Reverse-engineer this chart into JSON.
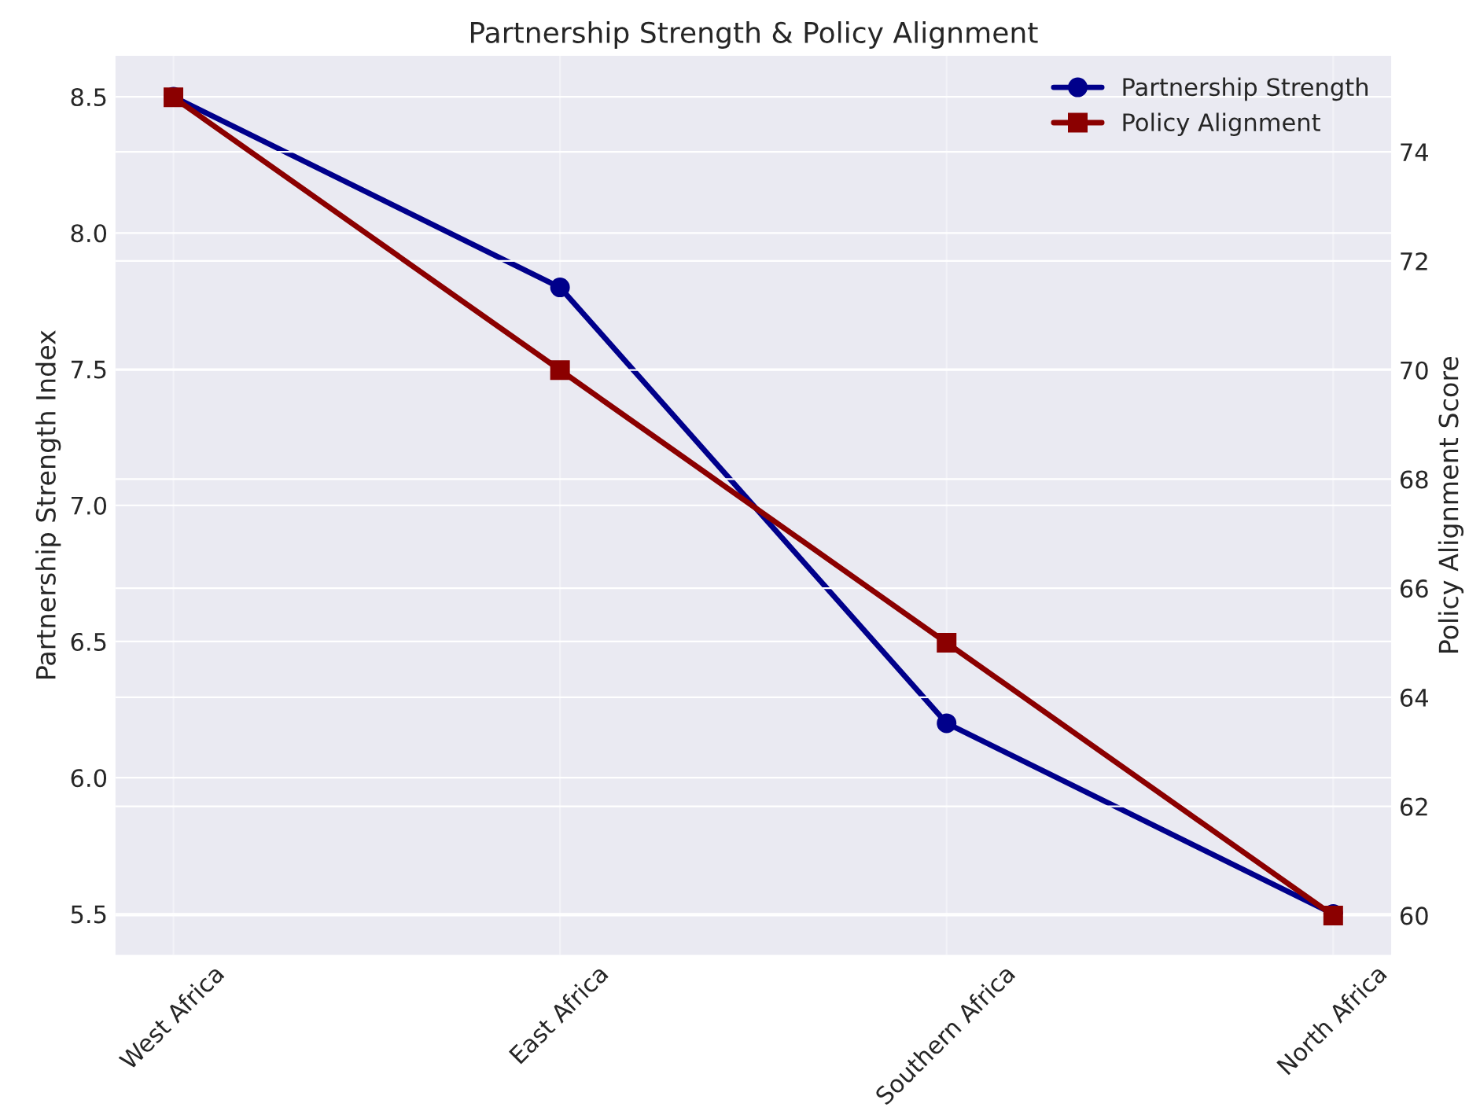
{
  "chart_data": {
    "type": "line",
    "title": "Partnership Strength & Policy Alignment",
    "categories": [
      "West Africa",
      "East Africa",
      "Southern Africa",
      "North Africa"
    ],
    "ylabel": "Partnership Strength Index",
    "y2label": "Policy Alignment Score",
    "ylim": [
      5.35,
      8.65
    ],
    "yticks": [
      5.5,
      {
        "value": 6,
        "label": "6.0"
      },
      6.5,
      {
        "value": 7,
        "label": "7.0"
      },
      7.5,
      {
        "value": 8,
        "label": "8.0"
      },
      8.5
    ],
    "y2lim": [
      59.28,
      75.76
    ],
    "y2ticks": [
      60,
      62,
      64,
      66,
      68,
      70,
      72,
      74
    ],
    "grid": true,
    "legend": "top right",
    "line_style": "solid",
    "series": [
      {
        "name": "Partnership Strength",
        "color": "#00008b",
        "marker": "circle",
        "values": [
          8.5,
          7.8,
          6.2,
          5.5
        ]
      },
      {
        "name": "Policy Alignment",
        "color": "#8b0000",
        "marker": "square",
        "axis": "y2",
        "values": [
          75,
          70,
          65,
          60
        ]
      }
    ]
  }
}
